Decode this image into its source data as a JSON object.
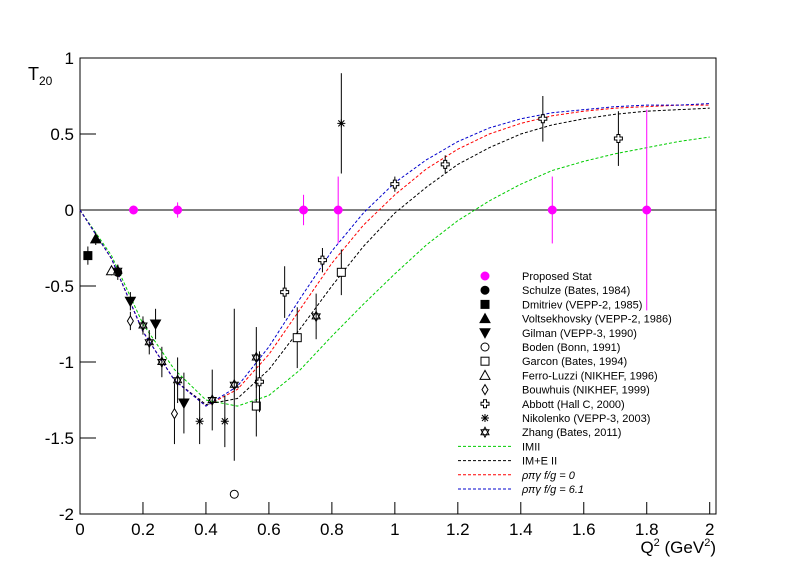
{
  "chart_data": {
    "type": "scatter",
    "ylabel": [
      "T",
      "20"
    ],
    "xlabel": [
      "Q",
      "2",
      " (GeV",
      "2",
      ")"
    ],
    "xlim": [
      0,
      2.02
    ],
    "ylim": [
      -2,
      1
    ],
    "xticks": [
      0,
      0.2,
      0.4,
      0.6,
      0.8,
      1,
      1.2,
      1.4,
      1.6,
      1.8,
      2
    ],
    "yticks": [
      -2,
      -1.5,
      -1,
      -0.5,
      0,
      0.5,
      1
    ],
    "series": [
      {
        "name": "Proposed Stat",
        "kind": "points",
        "marker": "circle-filled",
        "color": "#ff00ff",
        "x": [
          0.17,
          0.31,
          0.71,
          0.82,
          1.5,
          1.8
        ],
        "values": [
          0,
          0,
          0,
          0,
          0,
          0
        ],
        "errors": [
          0,
          0.05,
          0.1,
          0.22,
          0.22,
          0.66
        ]
      },
      {
        "name": "Schulze (Bates, 1984)",
        "kind": "points",
        "marker": "circle-filled",
        "color": "#000000",
        "x": [
          0.12
        ],
        "values": [
          -0.41
        ],
        "errors": [
          0.05
        ]
      },
      {
        "name": "Dmitriev (VEPP-2, 1985)",
        "kind": "points",
        "marker": "square-filled",
        "color": "#000000",
        "x": [
          0.025
        ],
        "values": [
          -0.3
        ],
        "errors": [
          0.06
        ]
      },
      {
        "name": "Voltsekhovsky (VEPP-2, 1986)",
        "kind": "points",
        "marker": "triangle-up-filled",
        "color": "#000000",
        "x": [
          0.05
        ],
        "values": [
          -0.19
        ],
        "errors": [
          0.04
        ]
      },
      {
        "name": "Gilman (VEPP-3, 1990)",
        "kind": "points",
        "marker": "triangle-down-filled",
        "color": "#000000",
        "x": [
          0.16,
          0.24,
          0.33
        ],
        "values": [
          -0.6,
          -0.75,
          -1.27
        ],
        "errors": [
          0.06,
          0.1,
          0.2
        ]
      },
      {
        "name": "Boden (Bonn, 1991)",
        "kind": "points",
        "marker": "circle-open",
        "color": "#000000",
        "x": [
          0.49
        ],
        "values": [
          -1.87
        ],
        "errors": [
          0
        ]
      },
      {
        "name": "Garcon (Bates, 1994)",
        "kind": "points",
        "marker": "square-open",
        "color": "#000000",
        "x": [
          0.56,
          0.69,
          0.83
        ],
        "values": [
          -1.29,
          -0.84,
          -0.41
        ],
        "errors": [
          0.2,
          0.2,
          0.15
        ]
      },
      {
        "name": "Ferro-Luzzi (NIKHEF, 1996)",
        "kind": "points",
        "marker": "triangle-up-open",
        "color": "#000000",
        "x": [
          0.1
        ],
        "values": [
          -0.4
        ],
        "errors": [
          0.03
        ]
      },
      {
        "name": "Bouwhuis (NIKHEF, 1999)",
        "kind": "points",
        "marker": "diamond-open",
        "color": "#000000",
        "x": [
          0.16,
          0.3
        ],
        "values": [
          -0.73,
          -1.34
        ],
        "errors": [
          0.06,
          0.2
        ]
      },
      {
        "name": "Abbott (Hall C, 2000)",
        "kind": "points",
        "marker": "cross-open",
        "color": "#000000",
        "x": [
          0.57,
          0.65,
          0.77,
          1.0,
          1.16,
          1.47,
          1.71
        ],
        "values": [
          -1.13,
          -0.54,
          -0.33,
          0.17,
          0.3,
          0.6,
          0.47
        ],
        "errors": [
          0.2,
          0.17,
          0.08,
          0.05,
          0.06,
          0.15,
          0.18
        ]
      },
      {
        "name": "Nikolenko (VEPP-3, 2003)",
        "kind": "points",
        "marker": "asterisk",
        "color": "#000000",
        "x": [
          0.38,
          0.46,
          0.83
        ],
        "values": [
          -1.39,
          -1.39,
          0.57
        ],
        "errors": [
          0.15,
          0.17,
          0.33
        ]
      },
      {
        "name": "Zhang (Bates, 2011)",
        "kind": "points",
        "marker": "hexagram",
        "color": "#000000",
        "x": [
          0.12,
          0.2,
          0.22,
          0.26,
          0.31,
          0.42,
          0.49,
          0.56,
          0.75
        ],
        "values": [
          -0.4,
          -0.76,
          -0.87,
          -1.0,
          -1.12,
          -1.25,
          -1.15,
          -0.97,
          -0.7
        ],
        "errors": [
          0.04,
          0.06,
          0.08,
          0.1,
          0.15,
          0.2,
          0.5,
          0.2,
          0.15
        ]
      },
      {
        "name": "IMII",
        "kind": "curve",
        "color": "#00cc00",
        "x": [
          0,
          0.1,
          0.2,
          0.3,
          0.4,
          0.5,
          0.6,
          0.7,
          0.8,
          0.9,
          1,
          1.1,
          1.2,
          1.3,
          1.4,
          1.5,
          1.6,
          1.7,
          1.8,
          1.9,
          2.0
        ],
        "values": [
          0,
          -0.3,
          -0.75,
          -1.05,
          -1.25,
          -1.29,
          -1.22,
          -1.05,
          -0.83,
          -0.62,
          -0.42,
          -0.23,
          -0.07,
          0.06,
          0.17,
          0.26,
          0.32,
          0.37,
          0.41,
          0.45,
          0.48
        ]
      },
      {
        "name": "IM+E II",
        "kind": "curve",
        "color": "#000000",
        "x": [
          0,
          0.1,
          0.2,
          0.3,
          0.4,
          0.5,
          0.6,
          0.7,
          0.8,
          0.9,
          1,
          1.1,
          1.2,
          1.3,
          1.4,
          1.5,
          1.6,
          1.7,
          1.8,
          1.9,
          2.0
        ],
        "values": [
          0,
          -0.32,
          -0.8,
          -1.12,
          -1.28,
          -1.24,
          -1.05,
          -0.78,
          -0.5,
          -0.24,
          -0.02,
          0.15,
          0.3,
          0.41,
          0.5,
          0.56,
          0.6,
          0.63,
          0.65,
          0.66,
          0.67
        ]
      },
      {
        "name": "ρπγ f/g = 0",
        "kind": "curve",
        "color": "#ff0000",
        "x": [
          0,
          0.1,
          0.2,
          0.3,
          0.4,
          0.5,
          0.6,
          0.7,
          0.8,
          0.9,
          1,
          1.1,
          1.2,
          1.3,
          1.4,
          1.5,
          1.6,
          1.7,
          1.8,
          1.9,
          2.0
        ],
        "values": [
          0,
          -0.32,
          -0.8,
          -1.12,
          -1.29,
          -1.18,
          -0.95,
          -0.65,
          -0.35,
          -0.1,
          0.1,
          0.27,
          0.4,
          0.5,
          0.57,
          0.62,
          0.65,
          0.67,
          0.68,
          0.69,
          0.69
        ]
      },
      {
        "name": "ρπγ f/g = 6.1",
        "kind": "curve",
        "color": "#0000cc",
        "x": [
          0,
          0.1,
          0.2,
          0.3,
          0.4,
          0.5,
          0.6,
          0.7,
          0.8,
          0.9,
          1,
          1.1,
          1.2,
          1.3,
          1.4,
          1.5,
          1.6,
          1.7,
          1.8,
          1.9,
          2.0
        ],
        "values": [
          0,
          -0.32,
          -0.8,
          -1.12,
          -1.29,
          -1.16,
          -0.9,
          -0.58,
          -0.27,
          -0.02,
          0.18,
          0.33,
          0.45,
          0.54,
          0.6,
          0.64,
          0.66,
          0.68,
          0.69,
          0.69,
          0.7
        ]
      }
    ]
  }
}
